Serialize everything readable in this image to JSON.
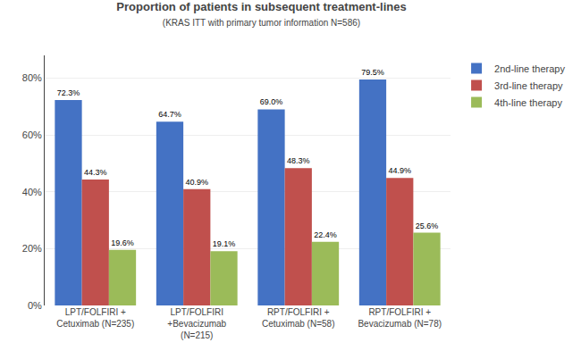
{
  "chart_data": {
    "type": "bar",
    "title": "Proportion of patients in subsequent treatment-lines",
    "subtitle": "(KRAS ITT with primary tumor information N=586)",
    "categories": [
      "LPT/FOLFIRI +\nCetuximab (N=235)",
      "LPT/FOLFIRI\n+Bevacizumab\n(N=215)",
      "RPT/FOLFIRI +\nCetuximab (N=58)",
      "RPT/FOLFIRI +\nBevacizumab (N=78)"
    ],
    "series": [
      {
        "name": "2nd-line therapy",
        "color": "#4472C4",
        "values": [
          72.3,
          64.7,
          69.0,
          79.5
        ],
        "value_labels": [
          "72.3%",
          "64.7%",
          "69.0%",
          "79.5%"
        ]
      },
      {
        "name": "3rd-line therapy",
        "color": "#C0504D",
        "values": [
          44.3,
          40.9,
          48.3,
          44.9
        ],
        "value_labels": [
          "44.3%",
          "40.9%",
          "48.3%",
          "44.9%"
        ]
      },
      {
        "name": "4th-line therapy",
        "color": "#9BBB59",
        "values": [
          19.6,
          19.1,
          22.4,
          25.6
        ],
        "value_labels": [
          "19.6%",
          "19.1%",
          "22.4%",
          "25.6%"
        ]
      }
    ],
    "ylim": [
      0,
      88
    ],
    "yticks": [
      {
        "value": 0,
        "label": "0%"
      },
      {
        "value": 20,
        "label": "20%"
      },
      {
        "value": 40,
        "label": "40%"
      },
      {
        "value": 60,
        "label": "60%"
      },
      {
        "value": 80,
        "label": "80%"
      }
    ],
    "grid": true,
    "legend": "right",
    "data_labels": true
  }
}
